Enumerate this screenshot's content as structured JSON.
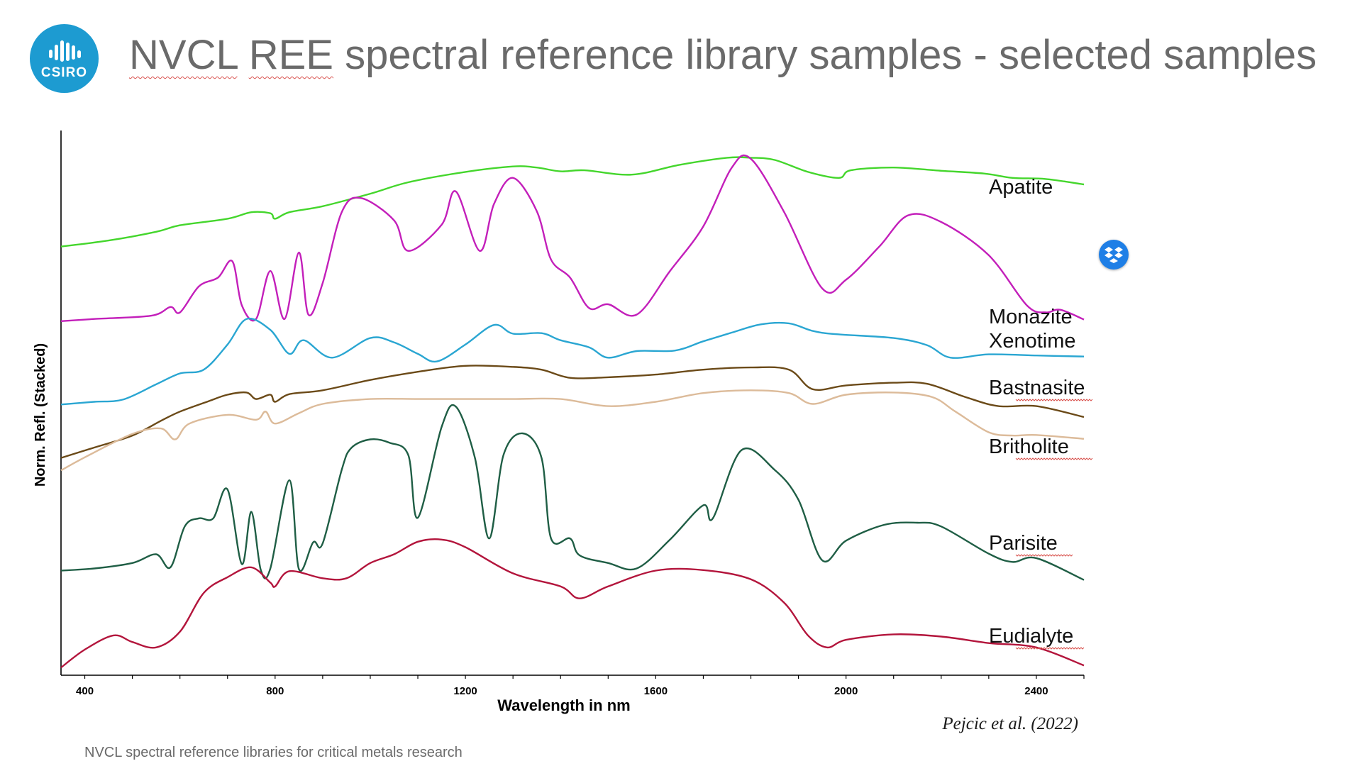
{
  "slide": {
    "logo_text": "CSIRO",
    "title_part1": "NVCL",
    "title_part2": "REE",
    "title_part3": "spectral reference library samples - selected samples",
    "citation": "Pejcic et al. (2022)",
    "footer": "NVCL spectral reference libraries for critical metals research"
  },
  "colors": {
    "logo": "#1d9bd1",
    "title": "#6a6a6a",
    "dropbox": "#1f7fe6"
  },
  "icons": {
    "logo": "csiro-logo-icon",
    "dropbox": "dropbox-icon"
  },
  "chart_data": {
    "type": "line",
    "title": "",
    "xlabel": "Wavelength in nm",
    "ylabel": "Norm. Refl. (Stacked)",
    "xlim": [
      350,
      2500
    ],
    "ylim": [
      0,
      100
    ],
    "x_ticks": [
      400,
      800,
      1200,
      1600,
      2000,
      2400
    ],
    "y_ticks_shown": false,
    "grid": false,
    "legend": "labels placed at right end of each curve",
    "series": [
      {
        "name": "Apatite",
        "color": "#44d62c",
        "points": [
          [
            350,
            78.7
          ],
          [
            450,
            79.8
          ],
          [
            550,
            81.4
          ],
          [
            600,
            82.6
          ],
          [
            700,
            83.8
          ],
          [
            750,
            85.0
          ],
          [
            790,
            84.8
          ],
          [
            800,
            83.8
          ],
          [
            830,
            85.0
          ],
          [
            900,
            86.1
          ],
          [
            1000,
            88.4
          ],
          [
            1080,
            90.5
          ],
          [
            1200,
            92.4
          ],
          [
            1300,
            93.4
          ],
          [
            1350,
            93.2
          ],
          [
            1400,
            92.5
          ],
          [
            1450,
            92.7
          ],
          [
            1550,
            91.9
          ],
          [
            1650,
            93.7
          ],
          [
            1750,
            95.0
          ],
          [
            1800,
            95.0
          ],
          [
            1850,
            94.6
          ],
          [
            1920,
            92.4
          ],
          [
            1985,
            91.3
          ],
          [
            2010,
            92.7
          ],
          [
            2100,
            93.2
          ],
          [
            2200,
            92.6
          ],
          [
            2290,
            92.1
          ],
          [
            2350,
            91.3
          ],
          [
            2420,
            91.1
          ],
          [
            2500,
            90.1
          ]
        ]
      },
      {
        "name": "Monazite",
        "color": "#c31fba",
        "points": [
          [
            350,
            65.0
          ],
          [
            420,
            65.4
          ],
          [
            540,
            66.0
          ],
          [
            580,
            67.6
          ],
          [
            600,
            66.6
          ],
          [
            640,
            71.4
          ],
          [
            680,
            73.0
          ],
          [
            710,
            76.0
          ],
          [
            730,
            67.9
          ],
          [
            760,
            65.4
          ],
          [
            790,
            74.2
          ],
          [
            820,
            65.4
          ],
          [
            850,
            77.6
          ],
          [
            870,
            66.2
          ],
          [
            900,
            72.0
          ],
          [
            940,
            85.0
          ],
          [
            980,
            87.6
          ],
          [
            1050,
            83.5
          ],
          [
            1080,
            77.9
          ],
          [
            1150,
            82.7
          ],
          [
            1180,
            88.8
          ],
          [
            1230,
            77.9
          ],
          [
            1260,
            86.5
          ],
          [
            1300,
            91.3
          ],
          [
            1350,
            85.2
          ],
          [
            1380,
            76.3
          ],
          [
            1420,
            73.0
          ],
          [
            1460,
            67.4
          ],
          [
            1500,
            68.1
          ],
          [
            1560,
            66.2
          ],
          [
            1630,
            74.2
          ],
          [
            1700,
            82.4
          ],
          [
            1760,
            93.2
          ],
          [
            1800,
            94.8
          ],
          [
            1870,
            85.0
          ],
          [
            1950,
            71.0
          ],
          [
            2000,
            72.6
          ],
          [
            2070,
            78.7
          ],
          [
            2130,
            84.4
          ],
          [
            2200,
            83.2
          ],
          [
            2300,
            77.1
          ],
          [
            2380,
            67.9
          ],
          [
            2420,
            66.6
          ],
          [
            2450,
            67.1
          ],
          [
            2500,
            65.3
          ]
        ]
      },
      {
        "name": "Xenotime",
        "color": "#2aa6d2",
        "points": [
          [
            350,
            49.7
          ],
          [
            420,
            50.2
          ],
          [
            480,
            50.6
          ],
          [
            550,
            53.4
          ],
          [
            600,
            55.4
          ],
          [
            650,
            56.1
          ],
          [
            700,
            60.7
          ],
          [
            740,
            65.4
          ],
          [
            790,
            63.4
          ],
          [
            830,
            59.0
          ],
          [
            860,
            61.5
          ],
          [
            920,
            58.3
          ],
          [
            1000,
            61.9
          ],
          [
            1050,
            61.1
          ],
          [
            1100,
            59.0
          ],
          [
            1140,
            57.6
          ],
          [
            1200,
            60.7
          ],
          [
            1260,
            64.3
          ],
          [
            1300,
            62.7
          ],
          [
            1360,
            62.8
          ],
          [
            1400,
            61.5
          ],
          [
            1460,
            60.2
          ],
          [
            1500,
            58.3
          ],
          [
            1560,
            59.5
          ],
          [
            1640,
            59.6
          ],
          [
            1700,
            61.3
          ],
          [
            1760,
            62.9
          ],
          [
            1820,
            64.4
          ],
          [
            1880,
            64.6
          ],
          [
            1930,
            63.2
          ],
          [
            1980,
            62.6
          ],
          [
            2100,
            61.9
          ],
          [
            2170,
            60.6
          ],
          [
            2220,
            58.3
          ],
          [
            2300,
            58.9
          ],
          [
            2400,
            58.7
          ],
          [
            2500,
            58.5
          ]
        ]
      },
      {
        "name": "Bastnasite",
        "color": "#6b4a18",
        "points": [
          [
            350,
            39.9
          ],
          [
            420,
            41.8
          ],
          [
            500,
            44.0
          ],
          [
            560,
            46.7
          ],
          [
            600,
            48.4
          ],
          [
            660,
            50.3
          ],
          [
            700,
            51.5
          ],
          [
            740,
            51.9
          ],
          [
            760,
            50.7
          ],
          [
            790,
            51.5
          ],
          [
            800,
            50.2
          ],
          [
            830,
            51.6
          ],
          [
            900,
            52.3
          ],
          [
            1000,
            54.2
          ],
          [
            1100,
            55.7
          ],
          [
            1200,
            56.8
          ],
          [
            1300,
            56.6
          ],
          [
            1360,
            56.1
          ],
          [
            1420,
            54.6
          ],
          [
            1500,
            54.7
          ],
          [
            1600,
            55.2
          ],
          [
            1700,
            56.1
          ],
          [
            1800,
            56.5
          ],
          [
            1880,
            56.1
          ],
          [
            1930,
            52.5
          ],
          [
            2000,
            53.2
          ],
          [
            2100,
            53.7
          ],
          [
            2170,
            53.5
          ],
          [
            2250,
            51.1
          ],
          [
            2320,
            49.4
          ],
          [
            2400,
            49.4
          ],
          [
            2500,
            47.4
          ]
        ]
      },
      {
        "name": "Britholite",
        "color": "#dcbb9a",
        "points": [
          [
            350,
            37.6
          ],
          [
            400,
            40.0
          ],
          [
            500,
            44.3
          ],
          [
            560,
            45.3
          ],
          [
            590,
            43.3
          ],
          [
            620,
            46.2
          ],
          [
            700,
            47.8
          ],
          [
            760,
            46.9
          ],
          [
            780,
            48.4
          ],
          [
            800,
            46.2
          ],
          [
            850,
            48.1
          ],
          [
            900,
            49.8
          ],
          [
            1000,
            50.7
          ],
          [
            1100,
            50.7
          ],
          [
            1200,
            50.7
          ],
          [
            1300,
            50.7
          ],
          [
            1400,
            50.7
          ],
          [
            1500,
            49.4
          ],
          [
            1600,
            50.2
          ],
          [
            1700,
            51.8
          ],
          [
            1800,
            52.3
          ],
          [
            1880,
            51.8
          ],
          [
            1930,
            49.8
          ],
          [
            2000,
            51.5
          ],
          [
            2100,
            51.9
          ],
          [
            2180,
            51.1
          ],
          [
            2230,
            48.4
          ],
          [
            2300,
            44.6
          ],
          [
            2350,
            44.0
          ],
          [
            2400,
            44.1
          ],
          [
            2500,
            43.4
          ]
        ]
      },
      {
        "name": "Parisite",
        "color": "#1f5e45",
        "points": [
          [
            350,
            19.2
          ],
          [
            420,
            19.6
          ],
          [
            500,
            20.6
          ],
          [
            550,
            22.2
          ],
          [
            580,
            19.8
          ],
          [
            610,
            27.3
          ],
          [
            640,
            28.8
          ],
          [
            670,
            28.8
          ],
          [
            700,
            34.1
          ],
          [
            730,
            20.4
          ],
          [
            750,
            30.0
          ],
          [
            770,
            19.3
          ],
          [
            790,
            19.6
          ],
          [
            830,
            35.8
          ],
          [
            850,
            19.5
          ],
          [
            880,
            24.4
          ],
          [
            900,
            24.2
          ],
          [
            940,
            37.7
          ],
          [
            960,
            41.7
          ],
          [
            1000,
            43.3
          ],
          [
            1040,
            42.7
          ],
          [
            1080,
            40.4
          ],
          [
            1100,
            28.9
          ],
          [
            1150,
            45.6
          ],
          [
            1180,
            49.3
          ],
          [
            1220,
            39.9
          ],
          [
            1250,
            25.1
          ],
          [
            1280,
            40.4
          ],
          [
            1320,
            44.4
          ],
          [
            1360,
            39.9
          ],
          [
            1380,
            25.1
          ],
          [
            1420,
            25.1
          ],
          [
            1440,
            22.0
          ],
          [
            1500,
            20.6
          ],
          [
            1560,
            19.6
          ],
          [
            1630,
            24.9
          ],
          [
            1700,
            31.2
          ],
          [
            1720,
            28.8
          ],
          [
            1780,
            41.3
          ],
          [
            1850,
            37.7
          ],
          [
            1900,
            32.2
          ],
          [
            1950,
            21.1
          ],
          [
            2000,
            24.7
          ],
          [
            2080,
            27.6
          ],
          [
            2150,
            28.0
          ],
          [
            2200,
            27.3
          ],
          [
            2300,
            22.3
          ],
          [
            2350,
            20.8
          ],
          [
            2400,
            21.5
          ],
          [
            2500,
            17.5
          ]
        ]
      },
      {
        "name": "Eudialyte",
        "color": "#b3153c",
        "points": [
          [
            350,
            1.4
          ],
          [
            400,
            4.7
          ],
          [
            460,
            7.3
          ],
          [
            500,
            6.1
          ],
          [
            550,
            5.1
          ],
          [
            600,
            8.0
          ],
          [
            650,
            15.1
          ],
          [
            700,
            18.0
          ],
          [
            750,
            19.8
          ],
          [
            790,
            17.0
          ],
          [
            800,
            16.3
          ],
          [
            830,
            19.1
          ],
          [
            900,
            17.8
          ],
          [
            950,
            17.8
          ],
          [
            1000,
            20.6
          ],
          [
            1050,
            22.2
          ],
          [
            1100,
            24.5
          ],
          [
            1150,
            24.9
          ],
          [
            1200,
            23.5
          ],
          [
            1300,
            18.7
          ],
          [
            1400,
            16.3
          ],
          [
            1440,
            14.1
          ],
          [
            1500,
            16.3
          ],
          [
            1600,
            19.2
          ],
          [
            1700,
            19.3
          ],
          [
            1800,
            17.6
          ],
          [
            1870,
            13.3
          ],
          [
            1920,
            7.3
          ],
          [
            1960,
            5.1
          ],
          [
            2000,
            6.5
          ],
          [
            2100,
            7.5
          ],
          [
            2200,
            7.1
          ],
          [
            2300,
            5.9
          ],
          [
            2400,
            5.1
          ],
          [
            2500,
            1.8
          ]
        ]
      }
    ],
    "labels": [
      {
        "text": "Apatite",
        "series": "Apatite"
      },
      {
        "text": "Monazite",
        "series": "Monazite"
      },
      {
        "text": "Xenotime",
        "series": "Xenotime"
      },
      {
        "text": "Bastnasite",
        "series": "Bastnasite"
      },
      {
        "text": "Britholite",
        "series": "Britholite"
      },
      {
        "text": "Parisite",
        "series": "Parisite"
      },
      {
        "text": "Eudialyte",
        "series": "Eudialyte"
      }
    ]
  }
}
